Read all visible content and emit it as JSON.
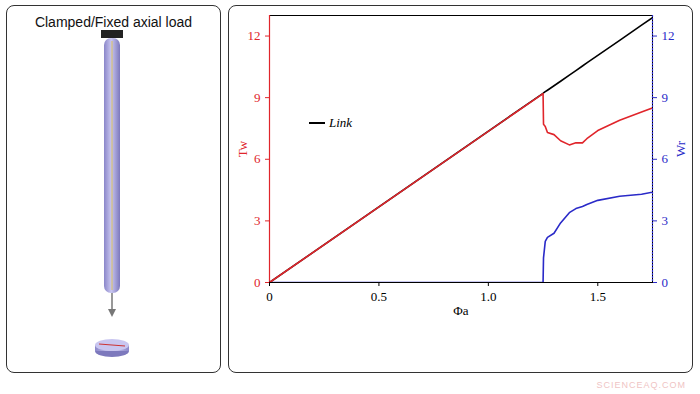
{
  "panel": {
    "title": "Clamped/Fixed axial load"
  },
  "watermark": "SCIENCEAQ.COM",
  "chart_data": {
    "type": "line",
    "x_label": "Φa",
    "y_label": "Tw",
    "y2_label": "Wr",
    "xlim": [
      0,
      1.75
    ],
    "xticks": [
      0,
      0.5,
      {
        "value": 1,
        "label": "1.0"
      },
      1.5
    ],
    "ylim": [
      0,
      13
    ],
    "yticks": [
      0,
      3,
      6,
      9,
      12
    ],
    "y2lim": [
      0,
      13
    ],
    "y2ticks": [
      0,
      3,
      6,
      9,
      12
    ],
    "legend": "upper left",
    "x": [
      0,
      1.25,
      1.252,
      1.26,
      1.27,
      1.3,
      1.33,
      1.37,
      1.4,
      1.43,
      1.45,
      1.5,
      1.6,
      1.7,
      1.75
    ],
    "series": [
      {
        "name": "Tw",
        "color": "#e0252b",
        "values": [
          0,
          9.2,
          7.7,
          7.6,
          7.3,
          7.2,
          6.9,
          6.7,
          6.8,
          6.8,
          7.0,
          7.4,
          7.9,
          8.3,
          8.5
        ]
      },
      {
        "name": "Wr",
        "color": "#2a2ac8",
        "axis": "y2",
        "values": [
          0,
          0,
          1.2,
          2.0,
          2.2,
          2.4,
          2.9,
          3.4,
          3.6,
          3.7,
          3.8,
          4.0,
          4.2,
          4.3,
          4.4
        ]
      },
      {
        "name": "Link",
        "color": "#000000",
        "values": [
          0,
          9.21,
          9.23,
          9.29,
          9.36,
          9.58,
          9.8,
          10.1,
          10.32,
          10.54,
          10.69,
          11.06,
          11.79,
          12.53,
          12.9
        ]
      }
    ]
  }
}
